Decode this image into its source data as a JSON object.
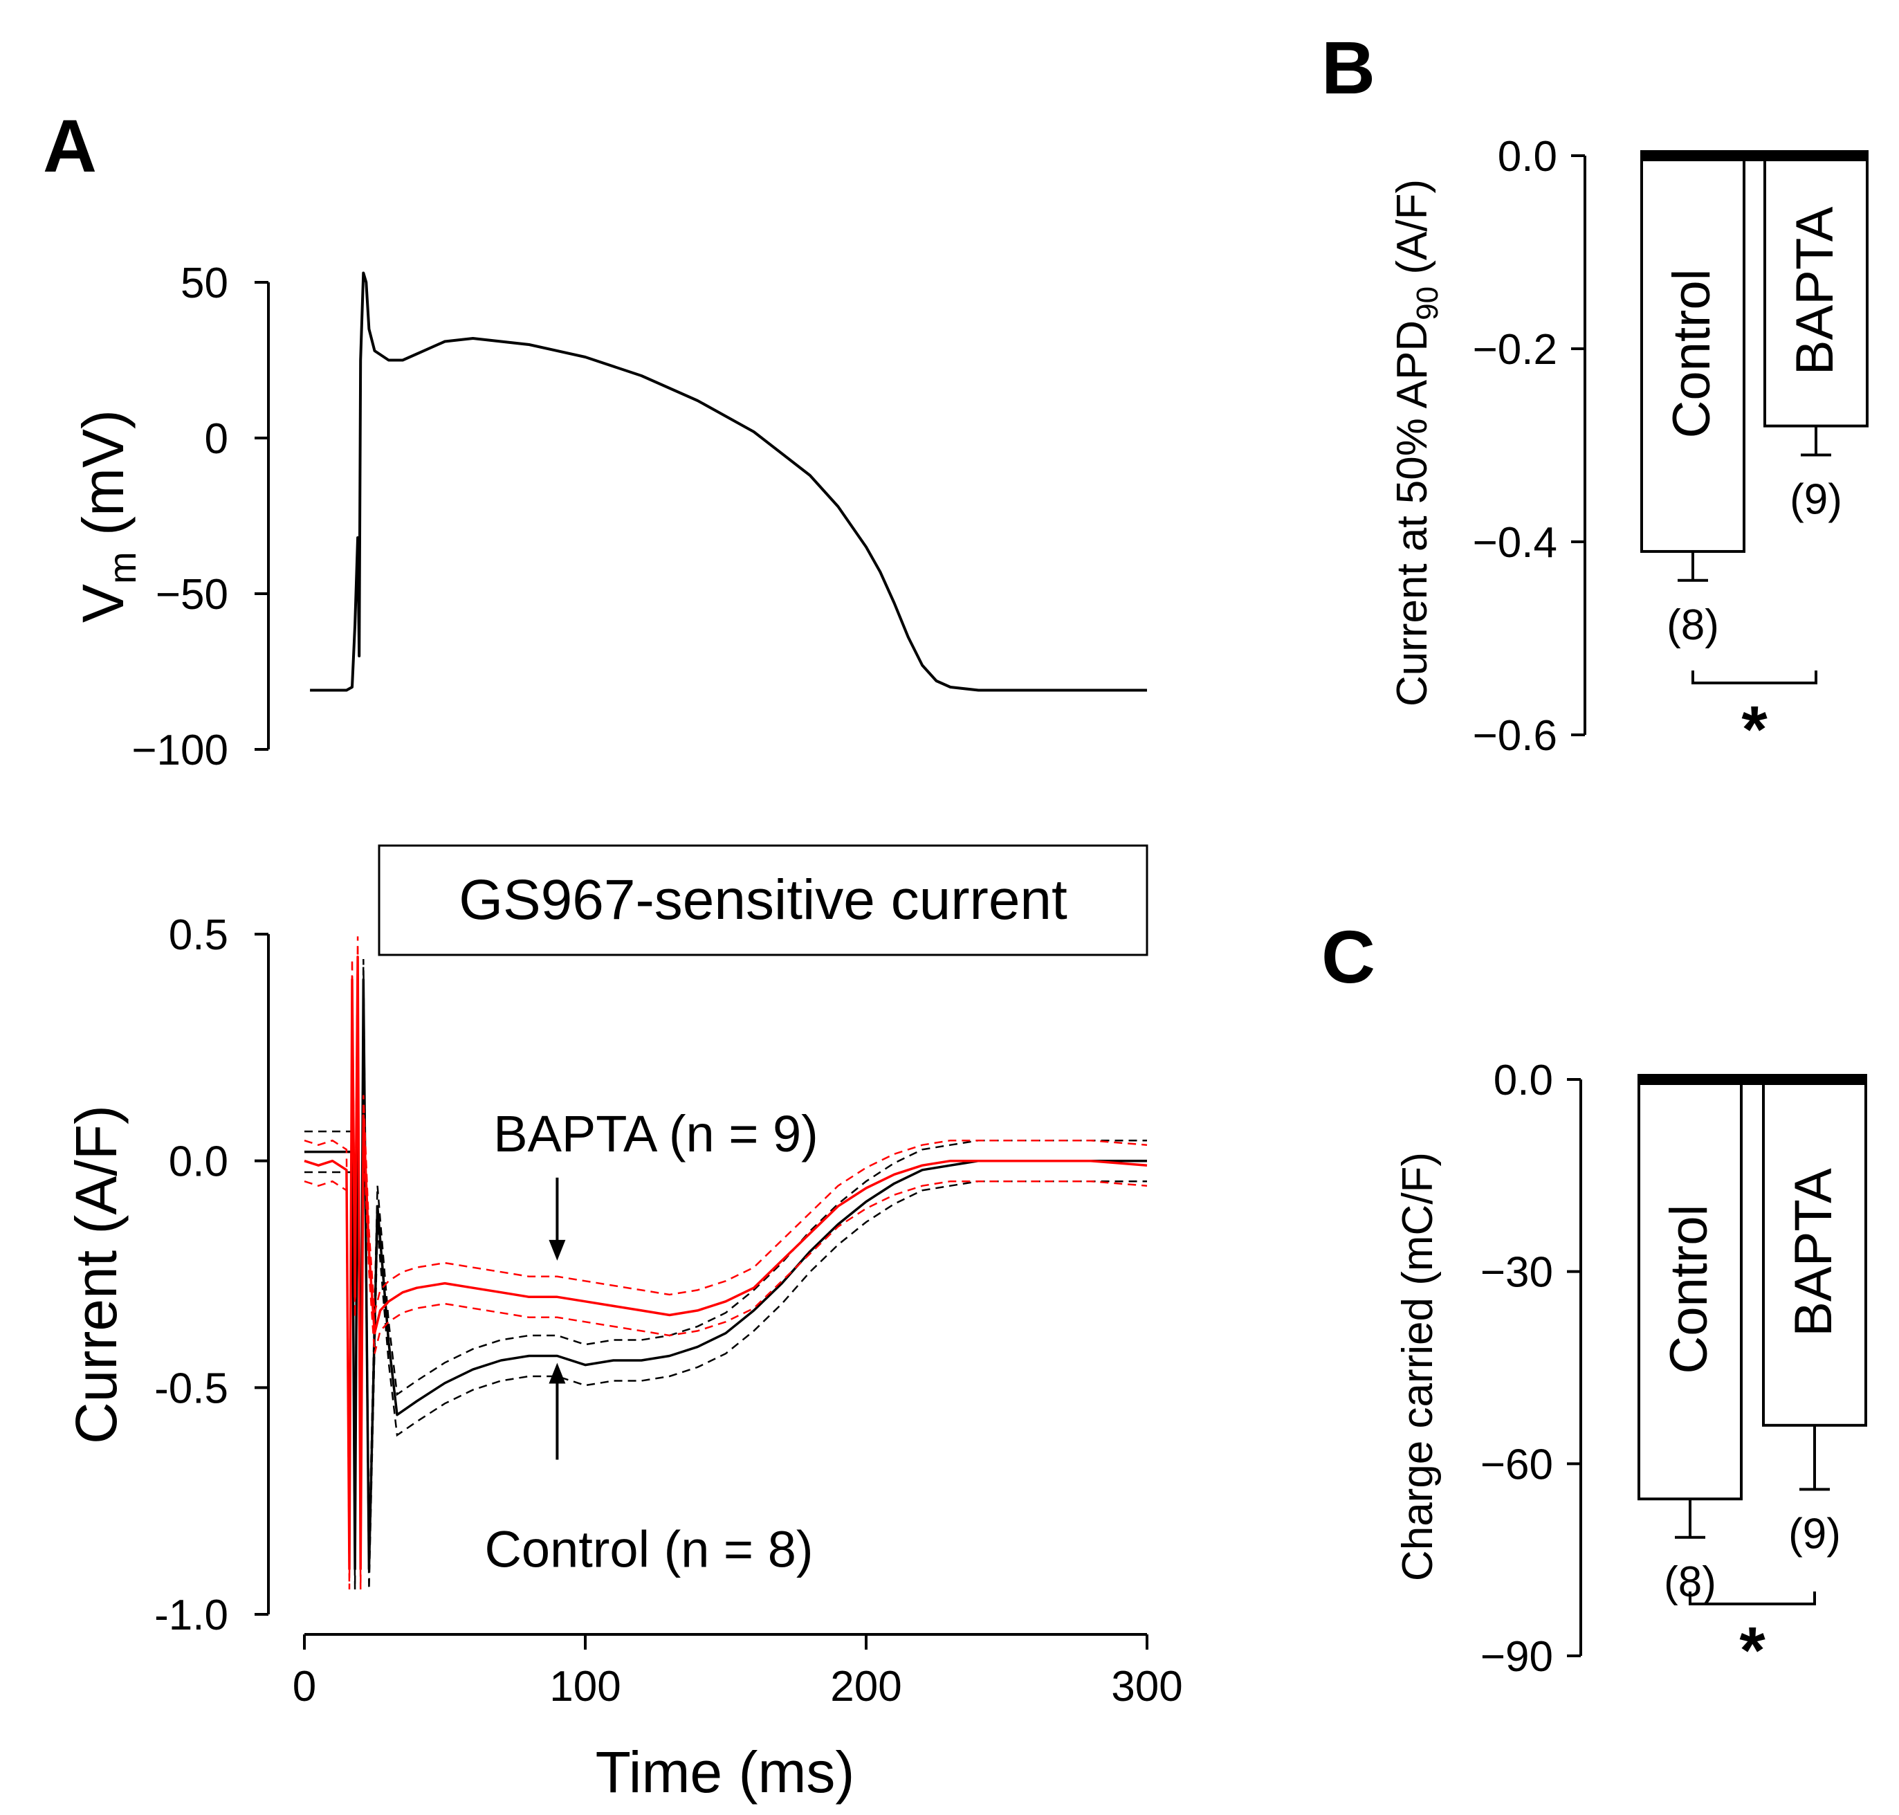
{
  "panel_labels": {
    "a": "A",
    "b": "B",
    "c": "C"
  },
  "colors": {
    "control": "#000000",
    "bapta": "#ff0000"
  },
  "chart_data": [
    {
      "id": "A-top",
      "type": "line",
      "ylabel_main": "V",
      "ylabel_sub": "m",
      "ylabel_unit": " (mV)",
      "xlim": [
        0,
        300
      ],
      "ylim": [
        -100,
        50
      ],
      "yticks": [
        50,
        0,
        -50,
        -100
      ],
      "ytick_labels": [
        "50",
        "0",
        "−50",
        "−100"
      ],
      "series": [
        {
          "name": "Action potential",
          "color": "#000000",
          "x": [
            2,
            15,
            17,
            18,
            19,
            19.5,
            20,
            21,
            22,
            23,
            25,
            30,
            35,
            40,
            50,
            60,
            80,
            100,
            120,
            140,
            160,
            180,
            190,
            200,
            205,
            210,
            215,
            220,
            225,
            230,
            240,
            260,
            300
          ],
          "y": [
            -81,
            -81,
            -80,
            -60,
            -32,
            -70,
            25,
            53,
            50,
            35,
            28,
            25,
            25,
            27,
            31,
            32,
            30,
            26,
            20,
            12,
            2,
            -12,
            -22,
            -35,
            -43,
            -53,
            -64,
            -73,
            -78,
            -80,
            -81,
            -81,
            -81
          ]
        }
      ]
    },
    {
      "id": "A-bottom",
      "type": "line",
      "title": "GS967-sensitive current",
      "xlabel": "Time (ms)",
      "ylabel": "Current (A/F)",
      "xlim": [
        0,
        300
      ],
      "ylim": [
        -1.0,
        0.5
      ],
      "xticks": [
        0,
        100,
        200,
        300
      ],
      "xtick_labels": [
        "0",
        "100",
        "200",
        "300"
      ],
      "yticks": [
        0.5,
        0.0,
        -0.5,
        -1.0
      ],
      "ytick_labels": [
        "0.5",
        "0.0",
        "-0.5",
        "-1.0"
      ],
      "series": [
        {
          "name": "Control (n = 8)",
          "color": "#000000",
          "x": [
            0,
            15,
            17,
            18,
            19,
            20,
            21,
            23,
            26,
            30,
            33,
            40,
            50,
            60,
            70,
            80,
            90,
            100,
            110,
            120,
            130,
            140,
            150,
            160,
            170,
            180,
            190,
            200,
            210,
            220,
            230,
            240,
            260,
            280,
            300
          ],
          "y": [
            0.02,
            0.02,
            0.02,
            -0.9,
            0.2,
            -0.7,
            0.4,
            -0.9,
            -0.1,
            -0.4,
            -0.56,
            -0.53,
            -0.49,
            -0.46,
            -0.44,
            -0.43,
            -0.43,
            -0.45,
            -0.44,
            -0.44,
            -0.43,
            -0.41,
            -0.38,
            -0.33,
            -0.27,
            -0.2,
            -0.14,
            -0.09,
            -0.05,
            -0.02,
            -0.01,
            0.0,
            0.0,
            0.0,
            0.0
          ]
        },
        {
          "name": "BAPTA (n = 9)",
          "color": "#ff0000",
          "x": [
            0,
            5,
            10,
            15,
            16,
            17,
            18,
            19,
            20,
            21,
            23,
            25,
            27,
            30,
            35,
            40,
            50,
            60,
            70,
            80,
            90,
            100,
            110,
            120,
            130,
            140,
            150,
            160,
            170,
            180,
            190,
            200,
            210,
            220,
            230,
            240,
            260,
            280,
            300
          ],
          "y": [
            0.0,
            -0.01,
            0.0,
            -0.02,
            -0.9,
            0.4,
            -0.3,
            0.45,
            -0.9,
            0.1,
            -0.2,
            -0.38,
            -0.33,
            -0.31,
            -0.29,
            -0.28,
            -0.27,
            -0.28,
            -0.29,
            -0.3,
            -0.3,
            -0.31,
            -0.32,
            -0.33,
            -0.34,
            -0.33,
            -0.31,
            -0.28,
            -0.22,
            -0.16,
            -0.1,
            -0.06,
            -0.03,
            -0.01,
            0.0,
            0.0,
            0.0,
            0.0,
            -0.01
          ]
        }
      ],
      "annotations": [
        {
          "text": "BAPTA (n = 9)",
          "x": 90,
          "y": -0.22,
          "arrow": "down"
        },
        {
          "text": "Control (n = 8)",
          "x": 90,
          "y": -0.43,
          "arrow": "up"
        }
      ]
    },
    {
      "id": "B",
      "type": "bar",
      "ylabel_pre": "Current at 50% APD",
      "ylabel_sub": "90",
      "ylabel_post": " (A/F)",
      "ylim": [
        -0.6,
        0.0
      ],
      "yticks": [
        0.0,
        -0.2,
        -0.4,
        -0.6
      ],
      "ytick_labels": [
        "0.0",
        "−0.2",
        "−0.4",
        "−0.6"
      ],
      "categories": [
        "Control",
        "BAPTA"
      ],
      "values": [
        -0.41,
        -0.28
      ],
      "errors": [
        0.03,
        0.03
      ],
      "n_labels": [
        "(8)",
        "(9)"
      ],
      "significance": "*"
    },
    {
      "id": "C",
      "type": "bar",
      "ylabel": "Charge carried (mC/F)",
      "ylim": [
        -90,
        0
      ],
      "yticks": [
        0,
        -30,
        -60,
        -90
      ],
      "ytick_labels": [
        "0.0",
        "−30",
        "−60",
        "−90"
      ],
      "categories": [
        "Control",
        "BAPTA"
      ],
      "values": [
        -65.5,
        -54
      ],
      "errors": [
        6,
        10
      ],
      "n_labels": [
        "(8)",
        "(9)"
      ],
      "significance": "*"
    }
  ]
}
